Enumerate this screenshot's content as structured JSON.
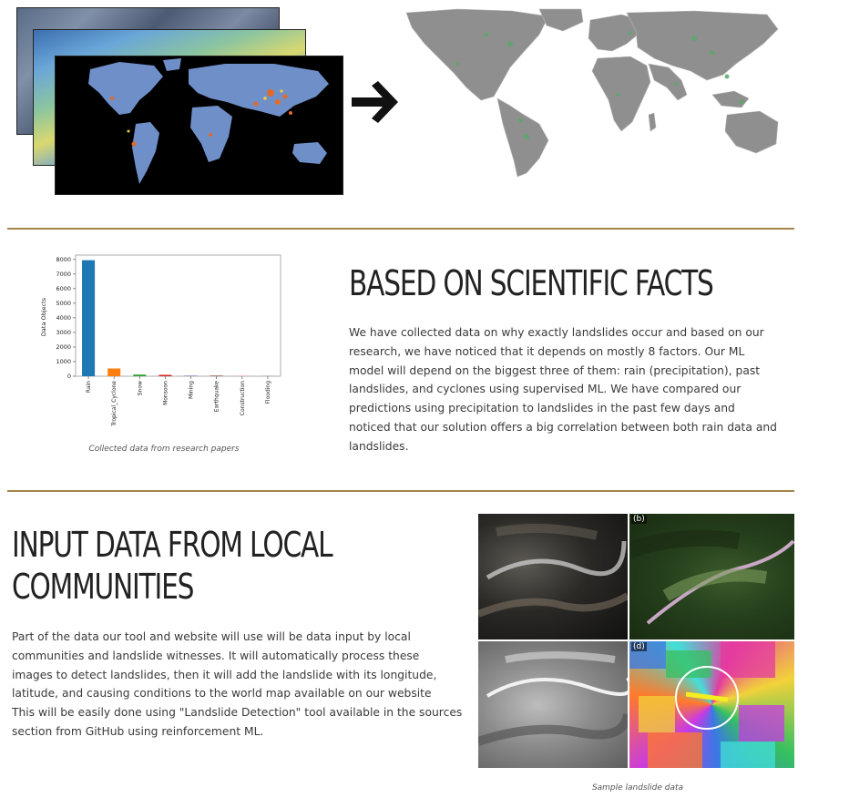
{
  "hero": {
    "arrow_icon": "right-arrow-icon",
    "map_colors": {
      "land": "#8f8f8f",
      "ocean": "#ffffff",
      "hotspot": "#5aa86a"
    }
  },
  "facts": {
    "heading": "BASED ON SCIENTIFIC FACTS",
    "paragraph": "We have collected data on why exactly landslides occur and based on our research, we have noticed that it depends on mostly 8 factors. Our ML model will depend on the biggest three of them: rain (precipitation), past landslides, and cyclones using supervised ML. We have compared our predictions using precipitation to landslides in the past few days and noticed that our solution offers a big correlation between both rain data and landslides.",
    "caption": "Collected data from research papers"
  },
  "community": {
    "heading_line1": "INPUT DATA FROM LOCAL",
    "heading_line2": "COMMUNITIES",
    "paragraph": "Part of the data our tool and website will use will be data input by local communities and landslide witnesses. It will automatically process these images to detect landslides, then it will add the landslide with its longitude, latitude, and causing conditions to the world map available on our website\nThis will be easily done using \"Landslide Detection\" tool available in the sources section from GitHub using reinforcement ML.",
    "caption": "Sample landslide data",
    "tile_labels": [
      "(b)",
      "(d)"
    ]
  },
  "accent_color": "#a5834a",
  "chart_data": {
    "type": "bar",
    "title": "",
    "xlabel": "",
    "ylabel": "Data Objects",
    "categories": [
      "Rain",
      "Tropical_Cyclone",
      "Snow",
      "Monsoon",
      "Mining",
      "Earthquake",
      "Construction",
      "Flooding"
    ],
    "values": [
      7950,
      530,
      110,
      95,
      40,
      45,
      25,
      15
    ],
    "colors": [
      "#1f77b4",
      "#ff7f0e",
      "#2ca02c",
      "#d62728",
      "#9467bd",
      "#8c564b",
      "#e377c2",
      "#7f7f7f"
    ],
    "ylim": [
      0,
      8300
    ],
    "yticks": [
      0,
      1000,
      2000,
      3000,
      4000,
      5000,
      6000,
      7000,
      8000
    ],
    "grid": false,
    "legend": "none"
  }
}
